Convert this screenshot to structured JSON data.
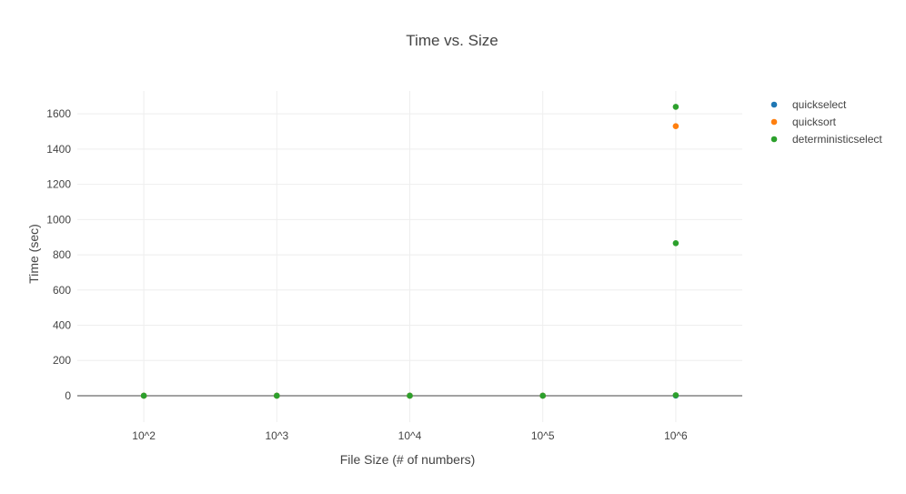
{
  "chart_data": {
    "type": "scatter",
    "title": "Time vs. Size",
    "xlabel": "File Size (# of numbers)",
    "ylabel": "Time (sec)",
    "x_categories": [
      "10^2",
      "10^3",
      "10^4",
      "10^5",
      "10^6"
    ],
    "yticks": [
      0,
      200,
      400,
      600,
      800,
      1000,
      1200,
      1400,
      1600
    ],
    "ylim": [
      -150,
      1730
    ],
    "grid": true,
    "legend_position": "top-right",
    "series": [
      {
        "name": "quickselect",
        "color": "#1f77b4",
        "points": [
          {
            "x": "10^2",
            "y": 0
          },
          {
            "x": "10^3",
            "y": 0
          },
          {
            "x": "10^4",
            "y": 0
          },
          {
            "x": "10^5",
            "y": 0
          },
          {
            "x": "10^6",
            "y": 1
          }
        ]
      },
      {
        "name": "quicksort",
        "color": "#ff7f0e",
        "points": [
          {
            "x": "10^2",
            "y": 0
          },
          {
            "x": "10^3",
            "y": 0
          },
          {
            "x": "10^4",
            "y": 0
          },
          {
            "x": "10^5",
            "y": 0
          },
          {
            "x": "10^6",
            "y": 1530
          }
        ]
      },
      {
        "name": "deterministicselect",
        "color": "#2ca02c",
        "points": [
          {
            "x": "10^2",
            "y": 0
          },
          {
            "x": "10^3",
            "y": 0
          },
          {
            "x": "10^4",
            "y": 0
          },
          {
            "x": "10^5",
            "y": 0
          },
          {
            "x": "10^6",
            "y": 3
          },
          {
            "x": "10^6",
            "y": 866
          },
          {
            "x": "10^6",
            "y": 1640
          }
        ]
      }
    ]
  }
}
